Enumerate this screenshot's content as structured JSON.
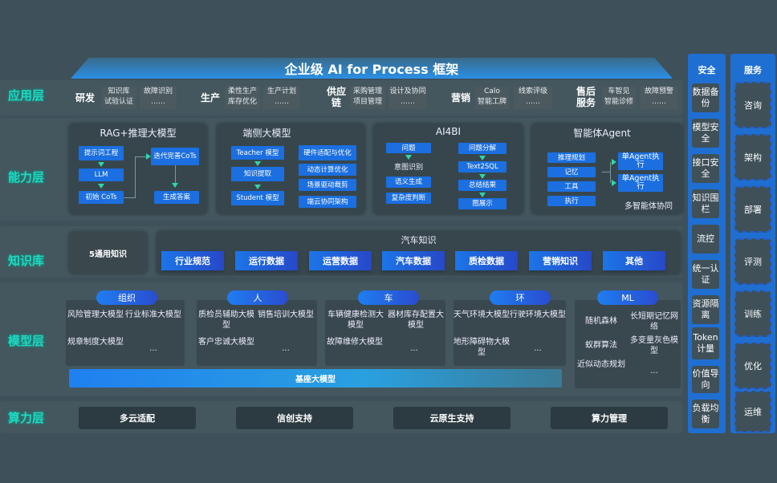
{
  "title": "企业级 AI for Process 框架",
  "layers": {
    "app": "应用层",
    "capability": "能力层",
    "knowledge": "知识库",
    "model": "模型层",
    "compute": "算力层"
  },
  "app": [
    {
      "group": "研发",
      "items": [
        "知识库",
        "试验认证",
        "故障识别",
        "……"
      ]
    },
    {
      "group": "生产",
      "items": [
        "柔性生产",
        "库存优化",
        "生产计划",
        "……"
      ]
    },
    {
      "group": "供应链",
      "items": [
        "采购管理",
        "项目管理",
        "设计及协同",
        "……"
      ]
    },
    {
      "group": "营销",
      "items": [
        "Calo",
        "智能工牌",
        "线索评级",
        "……"
      ]
    },
    {
      "group": "售后服务",
      "items": [
        "车智见",
        "智能诊修",
        "故障预警",
        "……"
      ]
    }
  ],
  "capability": {
    "rag": {
      "title": "RAG+推理大模型",
      "items": [
        "提示词工程",
        "LLM",
        "初始 CoTs",
        "迭代完善CoTs",
        "生成答案"
      ]
    },
    "edge": {
      "title": "端侧大模型",
      "items": [
        "Teacher 模型",
        "知识提取",
        "Student 模型",
        "硬件适配与优化",
        "动态计算优化",
        "场景驱动裁剪",
        "端云协同架构"
      ]
    },
    "ai4bi": {
      "title": "AI4BI",
      "items": [
        "问题",
        "意图识别",
        "语义生成",
        "复杂度判断",
        "问题分解",
        "Text2SQL",
        "总结结果",
        "图展示"
      ]
    },
    "agent": {
      "title": "智能体Agent",
      "items": [
        "推理规划",
        "记忆",
        "工具",
        "执行",
        "单Agent执行",
        "单Agent执行"
      ],
      "footer": "多智能体协同"
    }
  },
  "knowledge": {
    "general": "5通用知识",
    "auto_title": "汽车知识",
    "items": [
      "行业规范",
      "运行数据",
      "运营数据",
      "汽车数据",
      "质检数据",
      "营销知识",
      "其他"
    ]
  },
  "model": {
    "groups": [
      {
        "name": "组织",
        "items": [
          "风险管理大模型",
          "行业标准大模型",
          "规章制度大模型",
          "..."
        ]
      },
      {
        "name": "人",
        "items": [
          "质检员辅助大模型",
          "销售培训大模型",
          "客户忠诚大模型",
          "..."
        ]
      },
      {
        "name": "车",
        "items": [
          "车辆健康检测大模型",
          "器材库存配置大模型",
          "故障维修大模型",
          "..."
        ]
      },
      {
        "name": "环",
        "items": [
          "天气环境大模型",
          "行驶环境大模型",
          "地形障碍物大模型",
          "..."
        ]
      },
      {
        "name": "ML",
        "items": [
          "随机森林",
          "长短期记忆网络",
          "蚁群算法",
          "多变量灰色模型",
          "近似动态规划",
          "..."
        ]
      }
    ],
    "base": "基座大模型"
  },
  "compute": [
    "多云适配",
    "信创支持",
    "云原生支持",
    "算力管理"
  ],
  "security": {
    "title": "安全",
    "items": [
      "数据备份",
      "模型安全",
      "接口安全",
      "知识围栏",
      "流控",
      "统一认证",
      "资源隔离",
      "Token计量",
      "价值导向",
      "负载均衡"
    ]
  },
  "service": {
    "title": "服务",
    "items": [
      "咨询",
      "架构",
      "部署",
      "评测",
      "训练",
      "优化",
      "运维"
    ]
  },
  "colors": {
    "accent_blue": "#1b6fe0",
    "layer_label": "#22d6c3",
    "background": "#3e5059"
  }
}
